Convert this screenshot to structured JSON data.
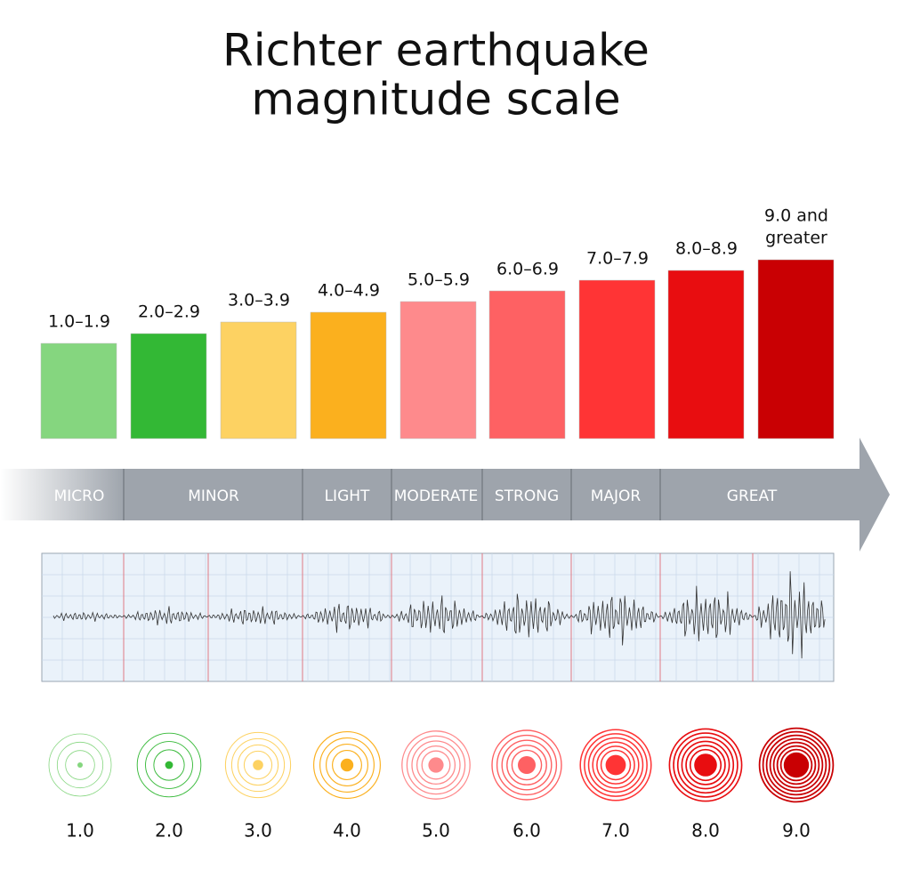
{
  "title": [
    "Richter earthquake",
    "magnitude scale"
  ],
  "bars": [
    {
      "label": [
        "1.0–1.9"
      ],
      "color": "#85d67f"
    },
    {
      "label": [
        "2.0–2.9"
      ],
      "color": "#33b835"
    },
    {
      "label": [
        "3.0–3.9"
      ],
      "color": "#fdd262"
    },
    {
      "label": [
        "4.0–4.9"
      ],
      "color": "#fbb01e"
    },
    {
      "label": [
        "5.0–5.9"
      ],
      "color": "#fe8a8c"
    },
    {
      "label": [
        "6.0–6.9"
      ],
      "color": "#fe6163"
    },
    {
      "label": [
        "7.0–7.9"
      ],
      "color": "#ff3435"
    },
    {
      "label": [
        "8.0–8.9"
      ],
      "color": "#e80d10"
    },
    {
      "label": [
        "9.0 and",
        "greater"
      ],
      "color": "#c90003"
    }
  ],
  "classes": [
    "MICRO",
    "MINOR",
    "LIGHT",
    "MODERATE",
    "STRONG",
    "MAJOR",
    "GREAT"
  ],
  "magnitudes": [
    "1.0",
    "2.0",
    "3.0",
    "4.0",
    "5.0",
    "6.0",
    "7.0",
    "8.0",
    "9.0"
  ]
}
